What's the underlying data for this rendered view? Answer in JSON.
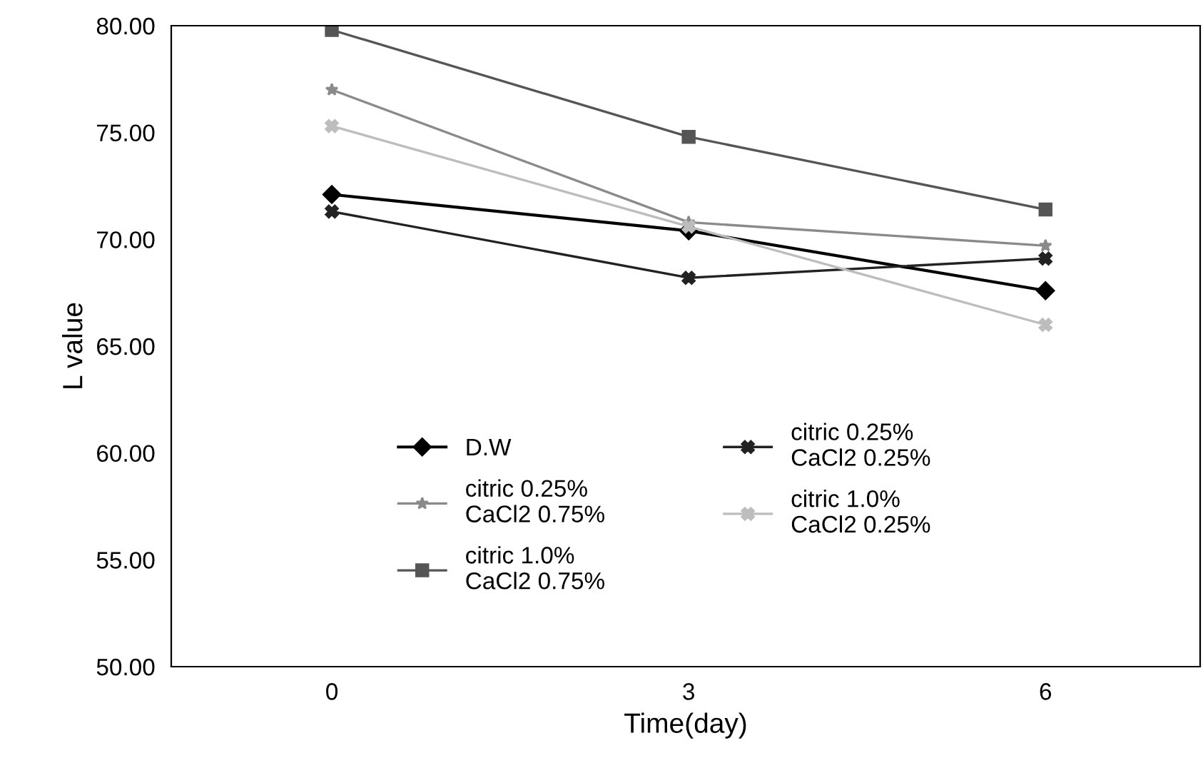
{
  "chart_data": {
    "type": "line",
    "xlabel": "Time(day)",
    "ylabel": "L value",
    "x": [
      0,
      3,
      6
    ],
    "xlim": [
      -1.35,
      7.3
    ],
    "xticks": [
      0,
      3,
      6
    ],
    "ylim": [
      50,
      80
    ],
    "yticks": [
      {
        "value": 50,
        "label": "50.00"
      },
      {
        "value": 55,
        "label": "55.00"
      },
      {
        "value": 60,
        "label": "60.00"
      },
      {
        "value": 65,
        "label": "65.00"
      },
      {
        "value": 70,
        "label": "70.00"
      },
      {
        "value": 75,
        "label": "75.00"
      },
      {
        "value": 80,
        "label": "80.00"
      }
    ],
    "grid": false,
    "legend": "bottom left",
    "series": [
      {
        "name": "D.W",
        "color": "#000000",
        "marker": "diamond",
        "values": [
          72.1,
          70.4,
          67.6
        ]
      },
      {
        "name": "citric 0.25%\nCaCl2 0.25%",
        "color": "#222222",
        "marker": "cross",
        "values": [
          71.3,
          68.2,
          69.1
        ]
      },
      {
        "name": "citric 0.25%\nCaCl2 0.75%",
        "color": "#8a8a8a",
        "marker": "star",
        "values": [
          77.0,
          70.8,
          69.7
        ]
      },
      {
        "name": "citric 1.0%\nCaCl2 0.25%",
        "color": "#bdbdbd",
        "marker": "cross",
        "values": [
          75.3,
          70.6,
          66.0
        ]
      },
      {
        "name": "citric 1.0%\nCaCl2 0.75%",
        "color": "#555555",
        "marker": "square",
        "values": [
          79.8,
          74.8,
          71.4
        ]
      }
    ]
  }
}
